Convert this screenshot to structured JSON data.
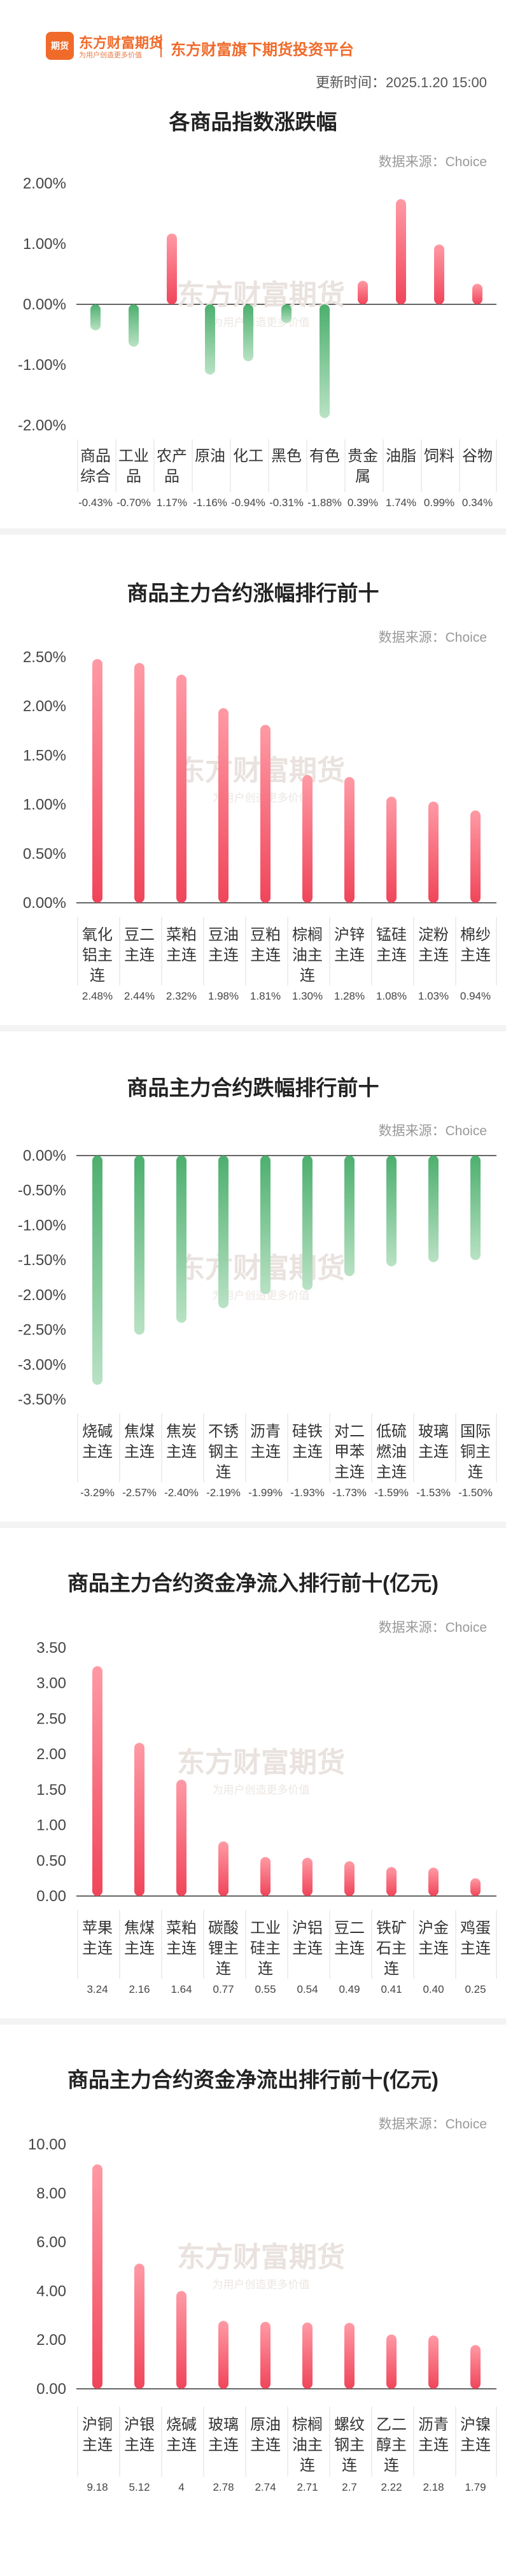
{
  "header": {
    "logo_text": "东方财富期货",
    "logo_mark": "期货",
    "brand_sub": "为用户创造更多价值",
    "tagline": "东方财富旗下期货投资平台",
    "update_time": "更新时间：2025.1.20 15:00"
  },
  "watermark": {
    "main": "东方财富期货",
    "sub": "为用户创造更多价值"
  },
  "colors": {
    "up": "#f0455a",
    "down": "#4caf6e"
  },
  "chart_data": [
    {
      "type": "bar",
      "title": "各商品指数涨跌幅",
      "source": "数据来源：Choice",
      "categories": [
        "商品综合",
        "工业品",
        "农产品",
        "原油",
        "化工",
        "黑色",
        "有色",
        "贵金属",
        "油脂",
        "饲料",
        "谷物"
      ],
      "values": [
        -0.43,
        -0.7,
        1.17,
        -1.16,
        -0.94,
        -0.31,
        -1.88,
        0.39,
        1.74,
        0.99,
        0.34
      ],
      "value_labels": [
        "-0.43%",
        "-0.70%",
        "1.17%",
        "-1.16%",
        "-0.94%",
        "-0.31%",
        "-1.88%",
        "0.39%",
        "1.74%",
        "0.99%",
        "0.34%"
      ],
      "yticks": [
        "2.00%",
        "1.00%",
        "0.00%",
        "-1.00%",
        "-2.00%"
      ],
      "ytick_values": [
        2,
        1,
        0,
        -1,
        -2
      ],
      "ylim": [
        -2,
        2
      ]
    },
    {
      "type": "bar",
      "title": "商品主力合约涨幅排行前十",
      "source": "数据来源：Choice",
      "categories": [
        "氧化铝主连",
        "豆二主连",
        "菜粕主连",
        "豆油主连",
        "豆粕主连",
        "棕榈油主连",
        "沪锌主连",
        "锰硅主连",
        "淀粉主连",
        "棉纱主连"
      ],
      "values": [
        2.48,
        2.44,
        2.32,
        1.98,
        1.81,
        1.3,
        1.28,
        1.08,
        1.03,
        0.94
      ],
      "value_labels": [
        "2.48%",
        "2.44%",
        "2.32%",
        "1.98%",
        "1.81%",
        "1.30%",
        "1.28%",
        "1.08%",
        "1.03%",
        "0.94%"
      ],
      "yticks": [
        "2.50%",
        "2.00%",
        "1.50%",
        "1.00%",
        "0.50%",
        "0.00%"
      ],
      "ytick_values": [
        2.5,
        2,
        1.5,
        1,
        0.5,
        0
      ],
      "ylim": [
        0,
        2.5
      ]
    },
    {
      "type": "bar",
      "title": "商品主力合约跌幅排行前十",
      "source": "数据来源：Choice",
      "categories": [
        "烧碱主连",
        "焦煤主连",
        "焦炭主连",
        "不锈钢主连",
        "沥青主连",
        "硅铁主连",
        "对二甲苯主连",
        "低硫燃油主连",
        "玻璃主连",
        "国际铜主连"
      ],
      "values": [
        -3.29,
        -2.57,
        -2.4,
        -2.19,
        -1.99,
        -1.93,
        -1.73,
        -1.59,
        -1.53,
        -1.5
      ],
      "value_labels": [
        "-3.29%",
        "-2.57%",
        "-2.40%",
        "-2.19%",
        "-1.99%",
        "-1.93%",
        "-1.73%",
        "-1.59%",
        "-1.53%",
        "-1.50%"
      ],
      "yticks": [
        "0.00%",
        "-0.50%",
        "-1.00%",
        "-1.50%",
        "-2.00%",
        "-2.50%",
        "-3.00%",
        "-3.50%"
      ],
      "ytick_values": [
        0,
        -0.5,
        -1,
        -1.5,
        -2,
        -2.5,
        -3,
        -3.5
      ],
      "ylim": [
        -3.5,
        0
      ]
    },
    {
      "type": "bar",
      "title": "商品主力合约资金净流入排行前十(亿元)",
      "source": "数据来源：Choice",
      "categories": [
        "苹果主连",
        "焦煤主连",
        "菜粕主连",
        "碳酸锂主连",
        "工业硅主连",
        "沪铝主连",
        "豆二主连",
        "铁矿石主连",
        "沪金主连",
        "鸡蛋主连"
      ],
      "values": [
        3.24,
        2.16,
        1.64,
        0.77,
        0.55,
        0.54,
        0.49,
        0.41,
        0.4,
        0.25
      ],
      "value_labels": [
        "3.24",
        "2.16",
        "1.64",
        "0.77",
        "0.55",
        "0.54",
        "0.49",
        "0.41",
        "0.40",
        "0.25"
      ],
      "yticks": [
        "3.50",
        "3.00",
        "2.50",
        "2.00",
        "1.50",
        "1.00",
        "0.50",
        "0.00"
      ],
      "ytick_values": [
        3.5,
        3,
        2.5,
        2,
        1.5,
        1,
        0.5,
        0
      ],
      "ylim": [
        0,
        3.5
      ]
    },
    {
      "type": "bar",
      "title": "商品主力合约资金净流出排行前十(亿元)",
      "source": "数据来源：Choice",
      "categories": [
        "沪铜主连",
        "沪银主连",
        "烧碱主连",
        "玻璃主连",
        "原油主连",
        "棕榈油主连",
        "螺纹钢主连",
        "乙二醇主连",
        "沥青主连",
        "沪镍主连"
      ],
      "values": [
        9.18,
        5.12,
        4,
        2.78,
        2.74,
        2.71,
        2.7,
        2.22,
        2.18,
        1.79
      ],
      "value_labels": [
        "9.18",
        "5.12",
        "4",
        "2.78",
        "2.74",
        "2.71",
        "2.7",
        "2.22",
        "2.18",
        "1.79"
      ],
      "yticks": [
        "10.00",
        "8.00",
        "6.00",
        "4.00",
        "2.00",
        "0.00"
      ],
      "ytick_values": [
        10,
        8,
        6,
        4,
        2,
        0
      ],
      "ylim": [
        0,
        10
      ]
    }
  ]
}
